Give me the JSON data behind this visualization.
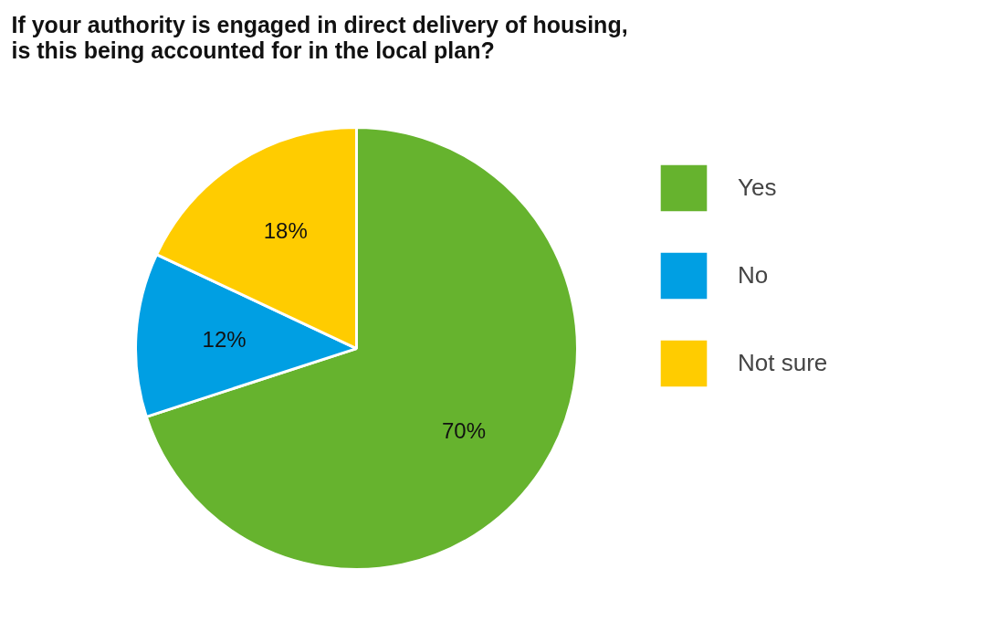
{
  "chart_data": {
    "type": "pie",
    "title": "If your authority is engaged in direct delivery of housing,\nis this being accounted for in the local plan?",
    "categories": [
      "Yes",
      "No",
      "Not sure"
    ],
    "values": [
      70,
      12,
      18
    ],
    "colors": [
      "#66b32e",
      "#009fe3",
      "#ffcc00"
    ],
    "value_labels": [
      "70%",
      "12%",
      "18%"
    ],
    "legend": "right"
  }
}
